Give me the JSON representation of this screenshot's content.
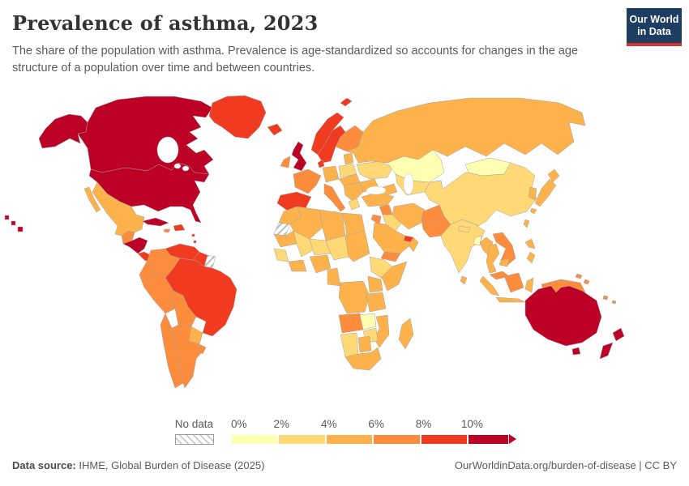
{
  "header": {
    "title": "Prevalence of asthma, 2023",
    "subtitle": "The share of the population with asthma. Prevalence is age-standardized so accounts for changes in the age structure of a population over time and between countries."
  },
  "logo": {
    "line1": "Our World",
    "line2": "in Data",
    "bg_color": "#1d3d63",
    "accent_color": "#cf352b"
  },
  "legend": {
    "no_data_label": "No data",
    "ticks": [
      "0%",
      "2%",
      "4%",
      "6%",
      "8%",
      "10%"
    ]
  },
  "footer": {
    "source_label": "Data source:",
    "source": " IHME, Global Burden of Disease (2025)",
    "credit": "OurWorldinData.org/burden-of-disease | CC BY"
  },
  "chart_data": {
    "type": "choropleth",
    "title": "Prevalence of asthma, 2023",
    "unit": "share of population with asthma (%), age-standardized",
    "legend_position": "bottom",
    "no_data": {
      "label": "No data",
      "fill": "hatched"
    },
    "buckets": [
      {
        "id": "b1",
        "label": "0–2%",
        "color": "#ffffb2"
      },
      {
        "id": "b2",
        "label": "2–4%",
        "color": "#fed976"
      },
      {
        "id": "b3",
        "label": "4–6%",
        "color": "#feb24c"
      },
      {
        "id": "b4",
        "label": "6–8%",
        "color": "#fd8d3c"
      },
      {
        "id": "b5",
        "label": "8–10%",
        "color": "#f03b20"
      },
      {
        "id": "b6",
        "label": ">10%",
        "color": "#bd0026"
      }
    ],
    "regions": {
      "canada": {
        "label": "Canada",
        "bucket": "b6"
      },
      "usa": {
        "label": "United States",
        "bucket": "b6"
      },
      "greenland": {
        "label": "Greenland",
        "bucket": "b5"
      },
      "mexico": {
        "label": "Mexico",
        "bucket": "b3"
      },
      "guatemala": {
        "label": "Guatemala",
        "bucket": "b4"
      },
      "honduras_nicaragua": {
        "label": "Honduras & Nicaragua",
        "bucket": "b6"
      },
      "panama_costa_rica": {
        "label": "Panama & Costa Rica",
        "bucket": "b5"
      },
      "cuba": {
        "label": "Cuba",
        "bucket": "b6"
      },
      "hispaniola": {
        "label": "Haiti & Dominican Republic",
        "bucket": "b5"
      },
      "jamaica": {
        "label": "Jamaica",
        "bucket": "b4"
      },
      "lesser_antilles": {
        "label": "Lesser Antilles",
        "bucket": "b5"
      },
      "venezuela": {
        "label": "Venezuela",
        "bucket": "b5"
      },
      "colombia": {
        "label": "Colombia",
        "bucket": "b4"
      },
      "guyana": {
        "label": "Guyana",
        "bucket": "b5"
      },
      "suriname": {
        "label": "Suriname",
        "bucket": "no_data"
      },
      "brazil": {
        "label": "Brazil",
        "bucket": "b5"
      },
      "ecuador": {
        "label": "Ecuador",
        "bucket": "b4"
      },
      "peru": {
        "label": "Peru",
        "bucket": "b4"
      },
      "bolivia": {
        "label": "Bolivia",
        "bucket": "b4"
      },
      "paraguay": {
        "label": "Paraguay",
        "bucket": "b3"
      },
      "chile": {
        "label": "Chile",
        "bucket": "b4"
      },
      "argentina": {
        "label": "Argentina",
        "bucket": "b4"
      },
      "uruguay": {
        "label": "Uruguay",
        "bucket": "b4"
      },
      "iceland": {
        "label": "Iceland",
        "bucket": "b5"
      },
      "svalbard": {
        "label": "Svalbard",
        "bucket": "b5"
      },
      "uk": {
        "label": "United Kingdom",
        "bucket": "b6"
      },
      "ireland": {
        "label": "Ireland",
        "bucket": "b4"
      },
      "norway": {
        "label": "Norway",
        "bucket": "b5"
      },
      "sweden": {
        "label": "Sweden",
        "bucket": "b5"
      },
      "finland": {
        "label": "Finland",
        "bucket": "b4"
      },
      "denmark": {
        "label": "Denmark",
        "bucket": "b5"
      },
      "baltics": {
        "label": "Baltic states",
        "bucket": "b3"
      },
      "germany": {
        "label": "Germany",
        "bucket": "b3"
      },
      "poland": {
        "label": "Poland",
        "bucket": "b2"
      },
      "france": {
        "label": "France",
        "bucket": "b4"
      },
      "spain": {
        "label": "Spain & Portugal",
        "bucket": "b5"
      },
      "italy": {
        "label": "Italy",
        "bucket": "b4"
      },
      "czech_hungary": {
        "label": "Czechia & Hungary",
        "bucket": "b3"
      },
      "balkans": {
        "label": "Balkans",
        "bucket": "b3"
      },
      "greece": {
        "label": "Greece",
        "bucket": "b2"
      },
      "ukraine": {
        "label": "Ukraine",
        "bucket": "b2"
      },
      "romania_bulgaria": {
        "label": "Romania & Bulgaria",
        "bucket": "b3"
      },
      "russia": {
        "label": "Russia",
        "bucket": "b3"
      },
      "kazakhstan": {
        "label": "Kazakhstan",
        "bucket": "b1"
      },
      "uzbek_turkmen": {
        "label": "Uzbekistan & Turkmenistan",
        "bucket": "b2"
      },
      "kyrgyz_tajik": {
        "label": "Kyrgyzstan & Tajikistan",
        "bucket": "b2"
      },
      "mongolia": {
        "label": "Mongolia",
        "bucket": "b1"
      },
      "caucasus": {
        "label": "Caucasus",
        "bucket": "b3"
      },
      "turkey": {
        "label": "Turkey",
        "bucket": "b3"
      },
      "syria": {
        "label": "Syria",
        "bucket": "b4"
      },
      "iraq": {
        "label": "Iraq",
        "bucket": "b2"
      },
      "iran": {
        "label": "Iran",
        "bucket": "b3"
      },
      "saudi_arabia": {
        "label": "Saudi Arabia",
        "bucket": "b3"
      },
      "uae": {
        "label": "United Arab Emirates",
        "bucket": "b5"
      },
      "oman": {
        "label": "Oman",
        "bucket": "b3"
      },
      "yemen": {
        "label": "Yemen",
        "bucket": "b4"
      },
      "israel_jordan": {
        "label": "Israel & Jordan",
        "bucket": "b4"
      },
      "afghanistan": {
        "label": "Afghanistan",
        "bucket": "b4"
      },
      "pakistan": {
        "label": "Pakistan",
        "bucket": "b4"
      },
      "india": {
        "label": "India",
        "bucket": "b2"
      },
      "nepal": {
        "label": "Nepal",
        "bucket": "b2"
      },
      "bangladesh": {
        "label": "Bangladesh",
        "bucket": "b1"
      },
      "sri_lanka": {
        "label": "Sri Lanka",
        "bucket": "b3"
      },
      "china": {
        "label": "China",
        "bucket": "b2"
      },
      "korea": {
        "label": "South Korea",
        "bucket": "b3"
      },
      "japan": {
        "label": "Japan",
        "bucket": "b3"
      },
      "taiwan": {
        "label": "Taiwan",
        "bucket": "b3"
      },
      "myanmar": {
        "label": "Myanmar",
        "bucket": "b3"
      },
      "thailand": {
        "label": "Thailand",
        "bucket": "b3"
      },
      "laos_vietnam": {
        "label": "Laos & Vietnam",
        "bucket": "b4"
      },
      "cambodia": {
        "label": "Cambodia",
        "bucket": "b3"
      },
      "malaysia": {
        "label": "Malaysia",
        "bucket": "b4"
      },
      "indonesia": {
        "label": "Indonesia",
        "bucket": "b3"
      },
      "borneo": {
        "label": "Borneo",
        "bucket": "b4"
      },
      "philippines": {
        "label": "Philippines",
        "bucket": "b3"
      },
      "west_papua": {
        "label": "Indonesian Papua",
        "bucket": "b4"
      },
      "papua_new_guinea": {
        "label": "Papua New Guinea",
        "bucket": "b4"
      },
      "pacific_islands": {
        "label": "Pacific islands",
        "bucket": "b4"
      },
      "morocco": {
        "label": "Morocco",
        "bucket": "b3"
      },
      "western_sahara": {
        "label": "Western Sahara",
        "bucket": "no_data"
      },
      "algeria": {
        "label": "Algeria",
        "bucket": "b3"
      },
      "libya": {
        "label": "Libya",
        "bucket": "b3"
      },
      "egypt": {
        "label": "Egypt",
        "bucket": "b3"
      },
      "mauritania": {
        "label": "Mauritania",
        "bucket": "b3"
      },
      "mali": {
        "label": "Mali",
        "bucket": "b2"
      },
      "niger": {
        "label": "Niger",
        "bucket": "b2"
      },
      "chad": {
        "label": "Chad",
        "bucket": "b2"
      },
      "sudan": {
        "label": "Sudan",
        "bucket": "b3"
      },
      "senegal_guinea": {
        "label": "Senegal & Guinea",
        "bucket": "b2"
      },
      "ivory_ghana": {
        "label": "Côte d'Ivoire & Ghana",
        "bucket": "b3"
      },
      "nigeria": {
        "label": "Nigeria",
        "bucket": "b3"
      },
      "cameroon_gabon": {
        "label": "Cameroon & Gabon",
        "bucket": "b3"
      },
      "ethiopia": {
        "label": "Ethiopia",
        "bucket": "b2"
      },
      "somalia": {
        "label": "Somalia",
        "bucket": "b3"
      },
      "kenya_uganda": {
        "label": "Kenya & Uganda",
        "bucket": "b3"
      },
      "drc": {
        "label": "Democratic Republic of Congo",
        "bucket": "b3"
      },
      "tanzania": {
        "label": "Tanzania",
        "bucket": "b3"
      },
      "angola": {
        "label": "Angola",
        "bucket": "b4"
      },
      "zambia": {
        "label": "Zambia",
        "bucket": "b1"
      },
      "mozambique": {
        "label": "Mozambique",
        "bucket": "b3"
      },
      "zimbabwe": {
        "label": "Zimbabwe",
        "bucket": "b2"
      },
      "namibia": {
        "label": "Namibia",
        "bucket": "b2"
      },
      "botswana": {
        "label": "Botswana",
        "bucket": "b3"
      },
      "south_africa": {
        "label": "South Africa",
        "bucket": "b3"
      },
      "madagascar": {
        "label": "Madagascar",
        "bucket": "b3"
      },
      "australia": {
        "label": "Australia",
        "bucket": "b6"
      },
      "new_zealand": {
        "label": "New Zealand",
        "bucket": "b6"
      }
    }
  }
}
